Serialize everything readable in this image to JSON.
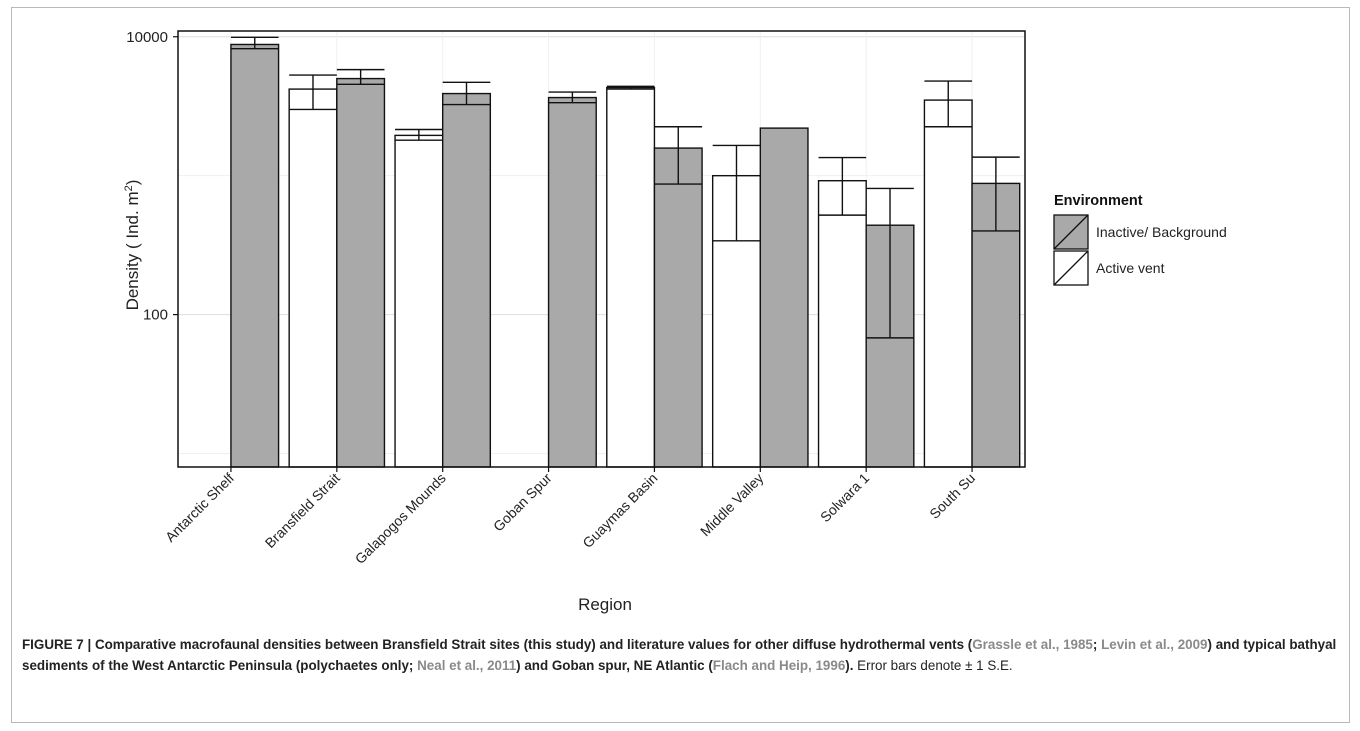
{
  "chart_data": {
    "type": "bar",
    "title": "",
    "xlabel": "Region",
    "ylabel": "Density  ( Ind. m",
    "ylabel_sup": "2",
    "ylabel_close": ")",
    "yscale": "log",
    "ylim": [
      8,
      11000
    ],
    "yticks": [
      100,
      10000
    ],
    "ytick_labels": [
      "100",
      "10000"
    ],
    "grid": true,
    "legend": {
      "title": "Environment",
      "position": "right",
      "entries": [
        {
          "label": "Inactive/ Background",
          "color": "#a9a9a9"
        },
        {
          "label": "Active vent",
          "color": "#ffffff"
        }
      ]
    },
    "categories": [
      "Antarctic Shelf",
      "Bransfield Strait",
      "Galapogos Mounds",
      "Goban Spur",
      "Guaymas Basin",
      "Middle Valley",
      "Solwara 1",
      "South Su"
    ],
    "series": [
      {
        "name": "Active vent",
        "color": "#ffffff",
        "values": [
          null,
          4200,
          1950,
          null,
          4300,
          1000,
          920,
          3500
        ],
        "err_low": [
          null,
          3000,
          1800,
          null,
          4200,
          340,
          520,
          2250
        ],
        "err_high": [
          null,
          5300,
          2150,
          null,
          4400,
          1650,
          1350,
          4800
        ]
      },
      {
        "name": "Inactive/ Background",
        "color": "#a9a9a9",
        "values": [
          8800,
          5000,
          3900,
          3650,
          1580,
          2200,
          440,
          880
        ],
        "err_low": [
          8200,
          4550,
          3250,
          3350,
          870,
          null,
          68,
          400
        ],
        "err_high": [
          9900,
          5800,
          4700,
          4000,
          2250,
          null,
          810,
          1360
        ]
      }
    ]
  },
  "caption": {
    "fig_label": "FIGURE 7 | ",
    "text_a": "Comparative macrofaunal densities between Bransfield Strait sites (this study) and literature values for other diffuse hydrothermal vents (",
    "ref_1": "Grassle et al., 1985",
    "sep_1": "; ",
    "ref_2": "Levin et al., 2009",
    "text_b": ") and typical bathyal sediments of the West Antarctic Peninsula (polychaetes only; ",
    "ref_3": "Neal et al., 2011",
    "text_c": ") and Goban spur, NE Atlantic (",
    "ref_4": "Flach and Heip, 1996",
    "text_d": ").",
    "text_e": " Error bars denote ± 1 S.E."
  }
}
